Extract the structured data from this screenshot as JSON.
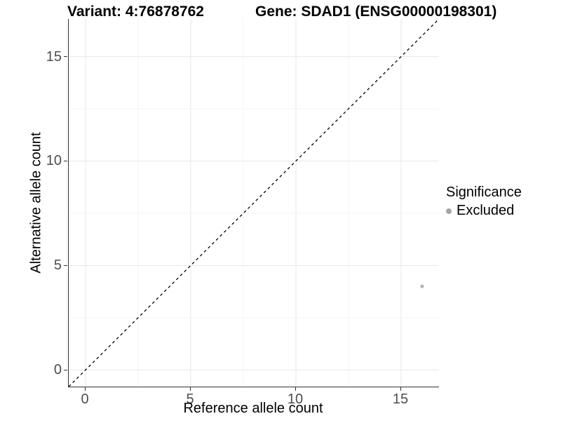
{
  "titles": {
    "variant": "Variant: 4:76878762",
    "gene": "Gene: SDAD1 (ENSG00000198301)"
  },
  "chart_data": {
    "type": "scatter",
    "title_left": "Variant: 4:76878762",
    "title_right": "Gene: SDAD1 (ENSG00000198301)",
    "xlabel": "Reference allele count",
    "ylabel": "Alternative allele count",
    "xlim": [
      -0.8,
      16.8
    ],
    "ylim": [
      -0.8,
      16.8
    ],
    "x_ticks": [
      0,
      5,
      10,
      15
    ],
    "y_ticks": [
      0,
      5,
      10,
      15
    ],
    "x_minor_ticks": [
      2.5,
      7.5,
      12.5
    ],
    "y_minor_ticks": [
      2.5,
      7.5,
      12.5
    ],
    "grid": true,
    "legend_position": "right",
    "reference_line": {
      "kind": "identity",
      "equation": "y = x",
      "style": "dashed",
      "color": "#000000"
    },
    "series": [
      {
        "name": "Excluded",
        "color": "#b5b5b5",
        "points": [
          {
            "x": 16,
            "y": 4
          }
        ]
      }
    ],
    "legend": {
      "title": "Significance",
      "entries": [
        {
          "label": "Excluded",
          "color": "#a6a6a6"
        }
      ]
    }
  },
  "colors": {
    "background": "#ffffff",
    "axis_line": "#333333",
    "tick_label": "#4d4d4d",
    "grid_major": "#e7e7e7",
    "grid_minor": "#f4f4f4",
    "title_text": "#000000",
    "point_fill": "#b5b5b5",
    "legend_dot": "#a6a6a6",
    "dashed_line": "#000000"
  }
}
